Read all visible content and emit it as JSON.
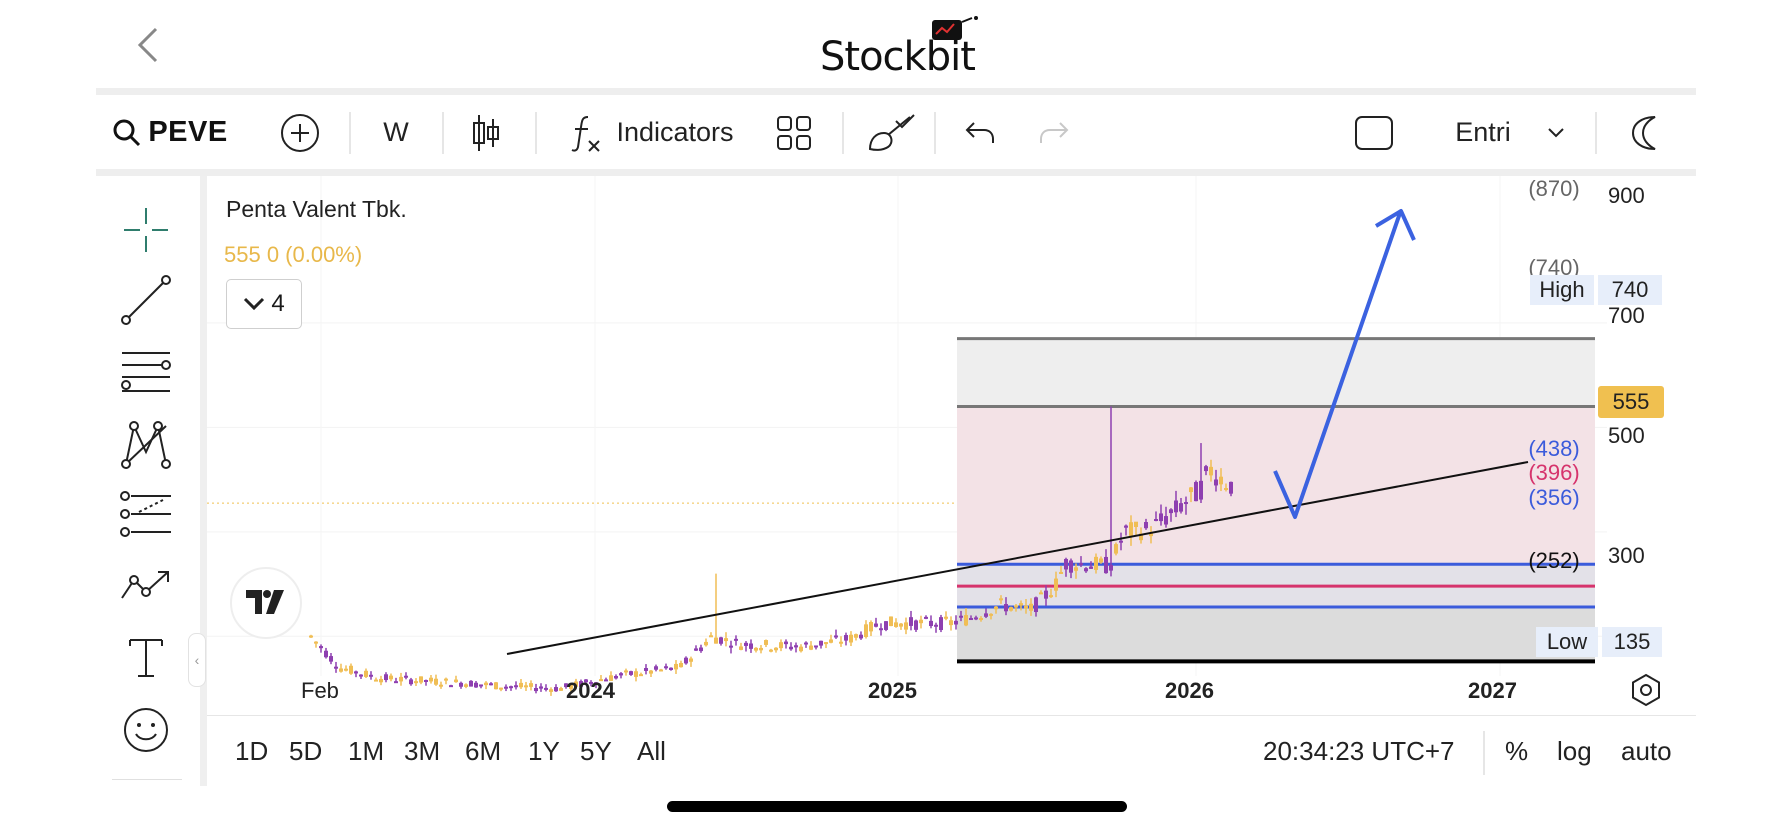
{
  "app": {
    "logo_text": "Stockbit"
  },
  "toolbar": {
    "symbol": "PEVE",
    "interval": "W",
    "indicators_label": "Indicators",
    "layout_dropdown": "Entri"
  },
  "chart": {
    "title": "Penta Valent Tbk.",
    "ohlc_value": "555  0 (0.00%)",
    "indicator_count": "4",
    "current_price": "555",
    "high_label": "High",
    "high_value": "740",
    "low_label": "Low",
    "low_value": "135",
    "fib_labels": [
      "(870)",
      "(740)",
      "(438)",
      "(396)",
      "(356)",
      "(252)"
    ],
    "y_ticks": [
      "900",
      "700",
      "500",
      "300"
    ],
    "x_ticks": [
      {
        "label": "Feb",
        "bold": false
      },
      {
        "label": "2024",
        "bold": true
      },
      {
        "label": "2025",
        "bold": true
      },
      {
        "label": "2026",
        "bold": true
      },
      {
        "label": "2027",
        "bold": true
      }
    ],
    "colors": {
      "candle_up": "#f0be55",
      "candle_down": "#8e3fb0",
      "fib_blue": "#3b5bdb",
      "fib_red": "#d6336c",
      "fib_gray": "#777777",
      "arrow": "#3b62e0",
      "price_tag_bg": "#f0c050"
    }
  },
  "bottom_bar": {
    "ranges": [
      "1D",
      "5D",
      "1M",
      "3M",
      "6M",
      "1Y",
      "5Y",
      "All"
    ],
    "time": "20:34:23 UTC+7",
    "percent": "%",
    "log": "log",
    "auto": "auto"
  },
  "sidebar_tools": [
    "crosshair-icon",
    "trend-line-icon",
    "fib-retracement-icon",
    "pattern-icon",
    "prediction-icon",
    "path-icon",
    "text-icon",
    "emoji-icon"
  ]
}
